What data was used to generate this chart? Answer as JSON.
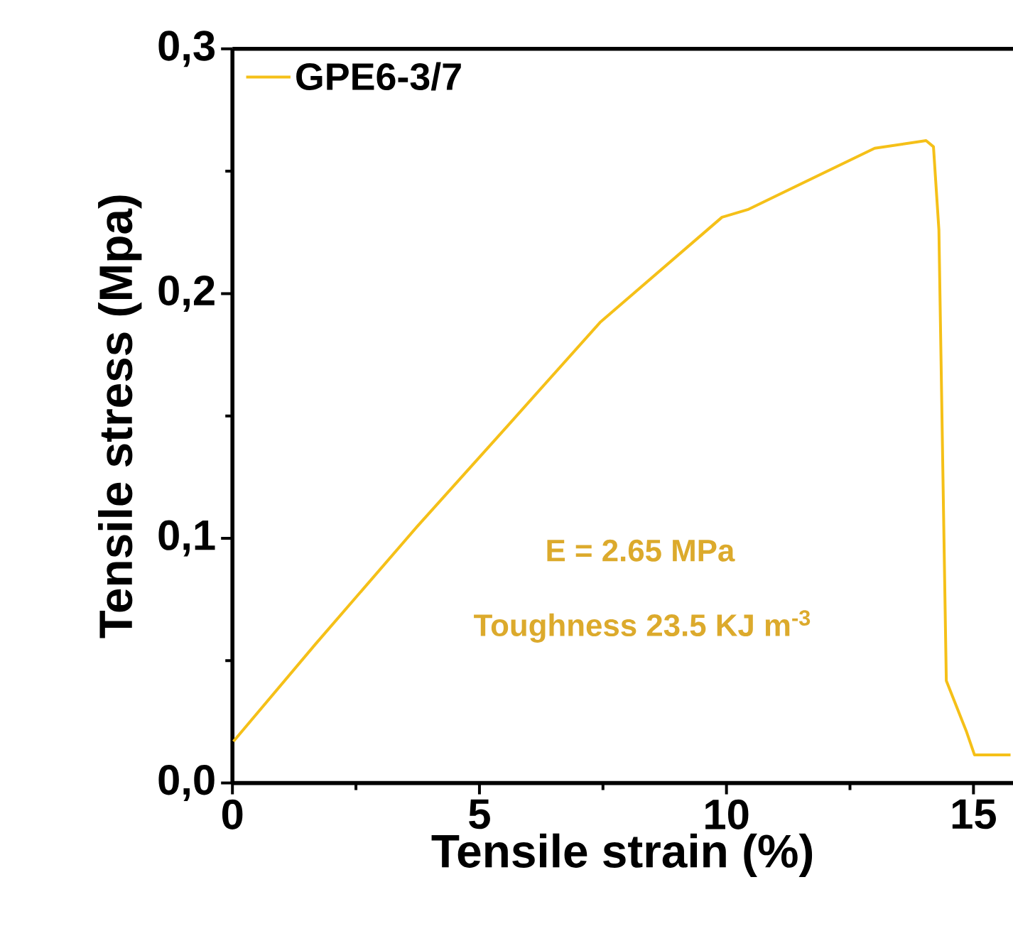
{
  "chart_data": {
    "type": "line",
    "xlabel": "Tensile strain (%)",
    "ylabel": "Tensile stress (Mpa)",
    "xlim": [
      0,
      15.8
    ],
    "ylim": [
      0,
      0.3
    ],
    "xticks": [
      0,
      5,
      10,
      15
    ],
    "yticks": [
      {
        "value": 0,
        "label": "0,0"
      },
      {
        "value": 0.1,
        "label": "0,1"
      },
      {
        "value": 0.2,
        "label": "0,2"
      },
      {
        "value": 0.3,
        "label": "0,3"
      }
    ],
    "legend": "top left",
    "grid": false,
    "annotations": [
      "E = 2.65 MPa",
      "Toughness 23.5 KJ m$^{-3}$"
    ],
    "series": [
      {
        "name": "GPE6-3/7",
        "color": "#f5c018",
        "x": [
          0.02,
          1.67,
          3.73,
          5.59,
          7.44,
          9.91,
          10.43,
          13.0,
          14.04,
          14.19,
          14.3,
          14.45,
          14.86,
          15.02,
          15.75
        ],
        "values": [
          0.017,
          0.0565,
          0.1046,
          0.1464,
          0.1882,
          0.2312,
          0.2343,
          0.2594,
          0.2625,
          0.26,
          0.226,
          0.0418,
          0.0209,
          0.0115,
          0.0115
        ]
      }
    ]
  }
}
